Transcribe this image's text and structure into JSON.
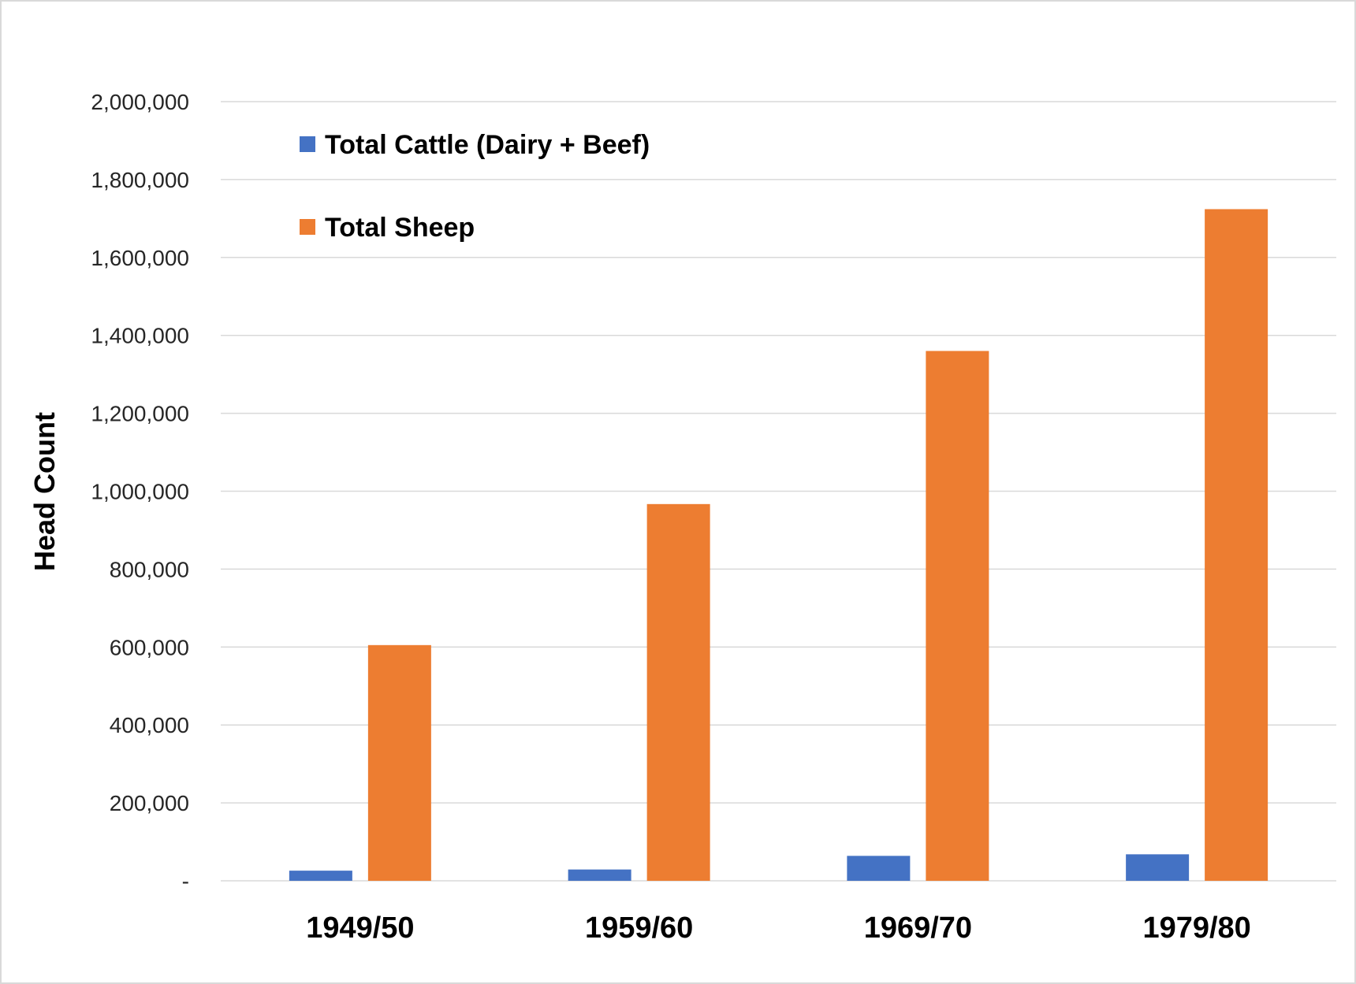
{
  "chart_data": {
    "type": "bar",
    "title": "",
    "xlabel": "",
    "ylabel": "Head Count",
    "categories": [
      "1949/50",
      "1959/60",
      "1969/70",
      "1979/80"
    ],
    "series": [
      {
        "name": "Total Cattle (Dairy + Beef)",
        "color": "#4472c4",
        "values": [
          26000,
          29000,
          64000,
          68000
        ]
      },
      {
        "name": "Total Sheep",
        "color": "#ed7d31",
        "values": [
          605000,
          967000,
          1360000,
          1724000
        ]
      }
    ],
    "ylim": [
      0,
      2000000
    ],
    "yticks": [
      0,
      200000,
      400000,
      600000,
      800000,
      1000000,
      1200000,
      1400000,
      1600000,
      1800000,
      2000000
    ],
    "ytick_labels": [
      "-",
      "200,000",
      "400,000",
      "600,000",
      "800,000",
      "1,000,000",
      "1,200,000",
      "1,400,000",
      "1,600,000",
      "1,800,000",
      "2,000,000"
    ],
    "grid": true,
    "legend_position": "top-left"
  }
}
